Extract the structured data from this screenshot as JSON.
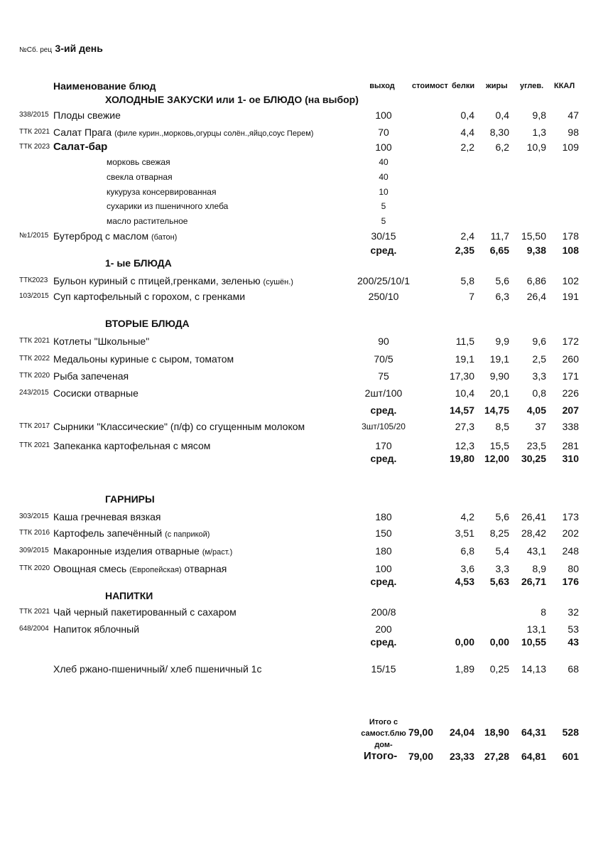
{
  "header": {
    "prefix": "№Сб. рец",
    "day": "3-ий день"
  },
  "columns": {
    "name": "Наименование  блюд",
    "yield": "выход",
    "cost": "стоимост",
    "protein": "белки",
    "fat": "жиры",
    "carbs": "углев.",
    "kcal": "ККАЛ"
  },
  "rows": [
    {
      "type": "section",
      "name": "ХОЛОДНЫЕ  ЗАКУСКИ  или 1- ое БЛЮДО (на выбор)"
    },
    {
      "type": "item",
      "code": "338/2015",
      "name": "Плоды свежие",
      "yield": "100",
      "b": "0,4",
      "f": "0,4",
      "c": "9,8",
      "k": "47"
    },
    {
      "type": "item",
      "code": "ТТК 2021",
      "name": "Салат Прага",
      "note": "(филе курин.,морковь,огурцы солён.,яйцо,соус Перем)",
      "yield": "70",
      "b": "4,4",
      "f": "8,30",
      "c": "1,3",
      "k": "98"
    },
    {
      "type": "big",
      "code": "ТТК 2023",
      "name": "Салат-бар",
      "yield": "100",
      "b": "2,2",
      "f": "6,2",
      "c": "10,9",
      "k": "109"
    },
    {
      "type": "sub",
      "name": "морковь свежая",
      "yield": "40"
    },
    {
      "type": "sub",
      "name": "свекла отварная",
      "yield": "40"
    },
    {
      "type": "sub",
      "name": "кукуруза консервированная",
      "yield": "10"
    },
    {
      "type": "sub",
      "name": "сухарики из пшеничного хлеба",
      "yield": "5"
    },
    {
      "type": "sub",
      "name": "масло растительное",
      "yield": "5"
    },
    {
      "type": "item",
      "code": "№1/2015",
      "name": "Бутерброд с маслом",
      "note": "(батон)",
      "yield": "30/15",
      "b": "2,4",
      "f": "11,7",
      "c": "15,50",
      "k": "178"
    },
    {
      "type": "avg",
      "yield": "сред.",
      "b": "2,35",
      "f": "6,65",
      "c": "9,38",
      "k": "108"
    },
    {
      "type": "section",
      "name": "1- ые БЛЮДА"
    },
    {
      "type": "item",
      "code": "ТТК2023",
      "name": "Бульон куриный с птицей,гренками, зеленью",
      "note": "(сушён.)",
      "yield": "200/25/10/1",
      "b": "5,8",
      "f": "5,6",
      "c": "6,86",
      "k": "102"
    },
    {
      "type": "item",
      "code": "103/2015",
      "name": "Суп картофельный с горохом, с гренками",
      "yield": "250/10",
      "b": "7",
      "f": "6,3",
      "c": "26,4",
      "k": "191"
    },
    {
      "type": "section",
      "name": "ВТОРЫЕ  БЛЮДА"
    },
    {
      "type": "item",
      "code": "ТТК 2021",
      "name": "Котлеты \"Школьные\"",
      "yield": "90",
      "b": "11,5",
      "f": "9,9",
      "c": "9,6",
      "k": "172"
    },
    {
      "type": "item",
      "code": "ТТК 2022",
      "name": "Медальоны куриные с сыром, томатом",
      "yield": "70/5",
      "b": "19,1",
      "f": "19,1",
      "c": "2,5",
      "k": "260"
    },
    {
      "type": "item",
      "code": "ТТК 2020",
      "name": "Рыба запеченая",
      "yield": "75",
      "b": "17,30",
      "f": "9,90",
      "c": "3,3",
      "k": "171"
    },
    {
      "type": "item",
      "code": "243/2015",
      "name": "Сосиски отварные",
      "yield": "2шт/100",
      "b": "10,4",
      "f": "20,1",
      "c": "0,8",
      "k": "226"
    },
    {
      "type": "avg",
      "yield": "сред.",
      "b": "14,57",
      "f": "14,75",
      "c": "4,05",
      "k": "207"
    },
    {
      "type": "item",
      "code": "ТТК 2017",
      "name": "Сырники \"Классические\" (п/ф) со сгущенным молоком",
      "yield": "3шт/105/20",
      "b": "27,3",
      "f": "8,5",
      "c": "37",
      "k": "338"
    },
    {
      "type": "item",
      "code": "ТТК 2021",
      "name": "Запеканка картофельная с мясом",
      "yield": "170",
      "b": "12,3",
      "f": "15,5",
      "c": "23,5",
      "k": "281"
    },
    {
      "type": "avg",
      "yield": "сред.",
      "b": "19,80",
      "f": "12,00",
      "c": "30,25",
      "k": "310"
    },
    {
      "type": "section",
      "name": "ГАРНИРЫ"
    },
    {
      "type": "item",
      "code": "303/2015",
      "name": "Каша гречневая вязкая",
      "yield": "180",
      "b": "4,2",
      "f": "5,6",
      "c": "26,41",
      "k": "173"
    },
    {
      "type": "item",
      "code": "ТТК 2016",
      "name": "Картофель запечённый",
      "note": "(с паприкой)",
      "yield": "150",
      "b": "3,51",
      "f": "8,25",
      "c": "28,42",
      "k": "202"
    },
    {
      "type": "item",
      "code": "309/2015",
      "name": "Макаронные изделия отварные",
      "note": "(м/раст.)",
      "yield": "180",
      "b": "6,8",
      "f": "5,4",
      "c": "43,1",
      "k": "248"
    },
    {
      "type": "item",
      "code": "ТТК 2020",
      "name": "Овощная смесь",
      "note": "(Европейская)",
      "suffix": "отварная",
      "yield": "100",
      "b": "3,6",
      "f": "3,3",
      "c": "8,9",
      "k": "80"
    },
    {
      "type": "avg",
      "yield": "сред.",
      "b": "4,53",
      "f": "5,63",
      "c": "26,71",
      "k": "176"
    },
    {
      "type": "section",
      "name": "НАПИТКИ"
    },
    {
      "type": "item",
      "code": "ТТК 2021",
      "name": "Чай черный пакетированный с сахаром",
      "yield": "200/8",
      "c": "8",
      "k": "32"
    },
    {
      "type": "item",
      "code": "648/2004",
      "name": "Напиток яблочный",
      "yield": "200",
      "c": "13,1",
      "k": "53"
    },
    {
      "type": "avg",
      "yield": "сред.",
      "b": "0,00",
      "f": "0,00",
      "c": "10,55",
      "k": "43"
    },
    {
      "type": "item",
      "name": "Хлеб ржано-пшеничный/ хлеб пшеничный 1с",
      "yield": "15/15",
      "b": "1,89",
      "f": "0,25",
      "c": "14,13",
      "k": "68"
    }
  ],
  "totals": [
    {
      "label1": "Итого с",
      "label2": "самост.блю",
      "label3": "дом-",
      "cost": "79,00",
      "b": "24,04",
      "f": "18,90",
      "c": "64,31",
      "k": "528"
    },
    {
      "label": "Итого-",
      "cost": "79,00",
      "b": "23,33",
      "f": "27,28",
      "c": "64,81",
      "k": "601"
    }
  ]
}
